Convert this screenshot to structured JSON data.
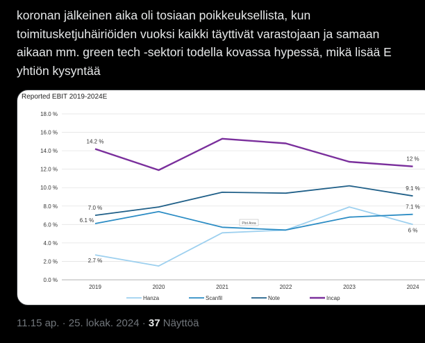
{
  "tweet": {
    "lines": [
      "koronan jälkeinen aika oli tosiaan poikkeuksellista, kun",
      "toimitusketjuhäiriöiden vuoksi kaikki täyttivät varastojaan ja samaan",
      "aikaan mm. green tech -sektori todella kovassa hypessä, mikä lisää E",
      "yhtiön kysyntää"
    ]
  },
  "meta": {
    "time": "11.15 ap.",
    "separator": "·",
    "date": "25. lokak. 2024",
    "views_count": "37",
    "views_label": "Näyttöä"
  },
  "chart_data": {
    "type": "line",
    "title": "Reported EBIT 2019-2024E",
    "categories": [
      "2019",
      "2020",
      "2021",
      "2022",
      "2023",
      "2024"
    ],
    "y_ticks": [
      "0.0 %",
      "2.0 %",
      "4.0 %",
      "6.0 %",
      "8.0 %",
      "10.0 %",
      "12.0 %",
      "14.0 %",
      "16.0 %",
      "18.0 %"
    ],
    "ylim": [
      0,
      18
    ],
    "grid": "horizontal",
    "legend_position": "bottom",
    "plot_area_label": "Plot Area",
    "series": [
      {
        "name": "Hanza",
        "color": "#9dd0ef",
        "values": [
          2.7,
          1.5,
          5.1,
          5.4,
          7.9,
          6.0
        ]
      },
      {
        "name": "Scanfil",
        "color": "#2b8cc4",
        "values": [
          6.1,
          7.4,
          5.7,
          5.4,
          6.8,
          7.1
        ]
      },
      {
        "name": "Note",
        "color": "#1f5f88",
        "values": [
          7.0,
          7.9,
          9.5,
          9.4,
          10.2,
          9.1
        ]
      },
      {
        "name": "Incap",
        "color": "#7a2f9c",
        "values": [
          14.2,
          11.9,
          15.3,
          14.8,
          12.8,
          12.3
        ]
      }
    ],
    "data_labels": [
      {
        "series": "Hanza",
        "index": 0,
        "text": "2.7 %"
      },
      {
        "series": "Hanza",
        "index": 5,
        "text": "6 %"
      },
      {
        "series": "Scanfil",
        "index": 0,
        "text": "6.1 %"
      },
      {
        "series": "Scanfil",
        "index": 5,
        "text": "7.1 %"
      },
      {
        "series": "Note",
        "index": 0,
        "text": "7.0 %"
      },
      {
        "series": "Note",
        "index": 5,
        "text": "9.1 %"
      },
      {
        "series": "Incap",
        "index": 0,
        "text": "14.2 %"
      },
      {
        "series": "Incap",
        "index": 5,
        "text": "12 %"
      }
    ]
  }
}
